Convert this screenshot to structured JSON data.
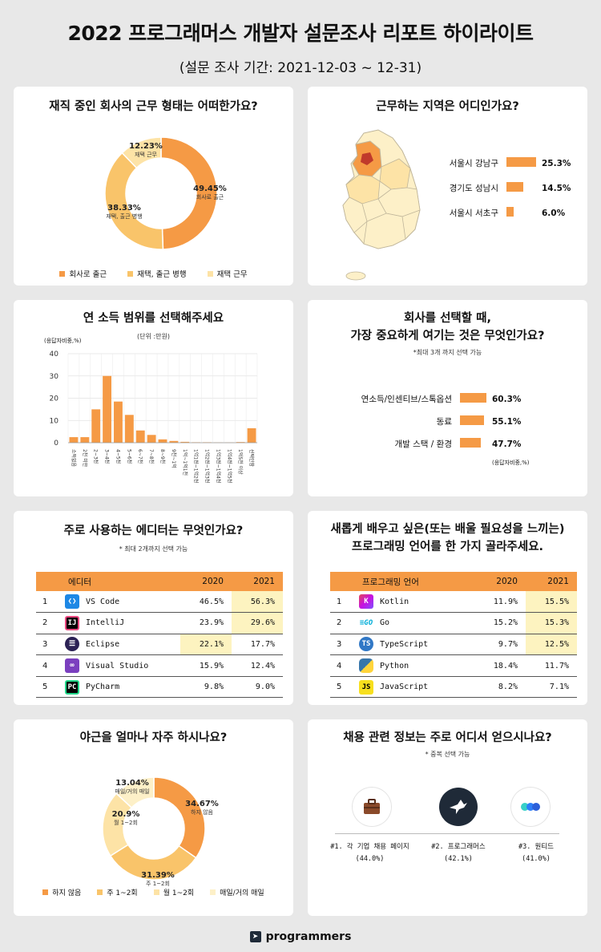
{
  "header": {
    "title": "2022 프로그래머스 개발자 설문조사 리포트 하이라이트",
    "subtitle": "(설문 조사 기간: 2021-12-03 ~ 12-31)"
  },
  "colors": {
    "orange": "#f59a45",
    "mid": "#f9c46a",
    "light": "#fde3a6",
    "lighter": "#fdf0c8",
    "highlight": "#fdf3c0"
  },
  "work_type": {
    "title": "재직 중인 회사의 근무 형태는 어떠한가요?",
    "slices": [
      {
        "pct_label": "49.45%",
        "sub": "회사로 출근",
        "value": 49.45,
        "color": "#f59a45"
      },
      {
        "pct_label": "38.33%",
        "sub": "재택, 출근 병행",
        "value": 38.33,
        "color": "#f9c46a"
      },
      {
        "pct_label": "12.23%",
        "sub": "재택 근무",
        "value": 12.23,
        "color": "#fde3a6"
      }
    ],
    "legend": [
      "회사로 출근",
      "재택, 출근 병행",
      "재택 근무"
    ]
  },
  "region": {
    "title": "근무하는 지역은 어디인가요?",
    "bars": [
      {
        "label": "서울시 강남구",
        "value": 25.3,
        "value_label": "25.3%"
      },
      {
        "label": "경기도 성남시",
        "value": 14.5,
        "value_label": "14.5%"
      },
      {
        "label": "서울시 서초구",
        "value": 6.0,
        "value_label": "6.0%"
      }
    ]
  },
  "income": {
    "title": "연 소득 범위를 선택해주세요",
    "note": "(단위 :만원)",
    "ylabel": "(응답자비중,%)"
  },
  "company": {
    "title_line1": "회사를 선택할 때,",
    "title_line2": "가장 중요하게 여기는 것은 무엇인가요?",
    "note": "*최대 3개 까지 선택 가능",
    "bars": [
      {
        "label": "연소득/인센티브/스톡옵션",
        "value": 60.3,
        "value_label": "60.3%"
      },
      {
        "label": "동료",
        "value": 55.1,
        "value_label": "55.1%"
      },
      {
        "label": "개발 스택 / 환경",
        "value": 47.7,
        "value_label": "47.7%"
      }
    ],
    "footnote": "(응답자비중,%)"
  },
  "editor": {
    "title": "주로 사용하는 에디터는 무엇인가요?",
    "note": "* 최대 2개까지 선택 가능",
    "headers": [
      "에디터",
      "2020",
      "2021"
    ],
    "rows": [
      {
        "rank": "1",
        "name": "VS Code",
        "icon": "vscode-icon",
        "y2020": "46.5%",
        "y2021": "56.3%"
      },
      {
        "rank": "2",
        "name": "IntelliJ",
        "icon": "intellij-icon",
        "y2020": "23.9%",
        "y2021": "29.6%"
      },
      {
        "rank": "3",
        "name": "Eclipse",
        "icon": "eclipse-icon",
        "y2020": "22.1%",
        "y2021": "17.7%"
      },
      {
        "rank": "4",
        "name": "Visual Studio",
        "icon": "visual-studio-icon",
        "y2020": "15.9%",
        "y2021": "12.4%"
      },
      {
        "rank": "5",
        "name": "PyCharm",
        "icon": "pycharm-icon",
        "y2020": "9.8%",
        "y2021": "9.0%"
      }
    ]
  },
  "language": {
    "title_line1": "새롭게 배우고 싶은(또는 배울 필요성을 느끼는)",
    "title_line2": "프로그래밍 언어를 한 가지 골라주세요.",
    "headers": [
      "프로그래밍 언어",
      "2020",
      "2021"
    ],
    "rows": [
      {
        "rank": "1",
        "name": "Kotlin",
        "icon": "kotlin-icon",
        "y2020": "11.9%",
        "y2021": "15.5%"
      },
      {
        "rank": "2",
        "name": "Go",
        "icon": "go-icon",
        "y2020": "15.2%",
        "y2021": "15.3%"
      },
      {
        "rank": "3",
        "name": "TypeScript",
        "icon": "typescript-icon",
        "y2020": "9.7%",
        "y2021": "12.5%"
      },
      {
        "rank": "4",
        "name": "Python",
        "icon": "python-icon",
        "y2020": "18.4%",
        "y2021": "11.7%"
      },
      {
        "rank": "5",
        "name": "JavaScript",
        "icon": "javascript-icon",
        "y2020": "8.2%",
        "y2021": "7.1%"
      }
    ]
  },
  "overtime": {
    "title": "야근을 얼마나 자주 하시나요?",
    "slices": [
      {
        "pct_label": "34.67%",
        "sub": "하지 않음",
        "value": 34.67,
        "color": "#f59a45"
      },
      {
        "pct_label": "31.39%",
        "sub": "주 1~2회",
        "value": 31.39,
        "color": "#f9c46a"
      },
      {
        "pct_label": "20.9%",
        "sub": "월 1~2회",
        "value": 20.9,
        "color": "#fde3a6"
      },
      {
        "pct_label": "13.04%",
        "sub": "매일/거의 매일",
        "value": 13.04,
        "color": "#fdf0c8"
      }
    ],
    "legend": [
      "하지 않음",
      "주 1~2회",
      "월 1~2회",
      "매일/거의 매일"
    ]
  },
  "jobinfo": {
    "title": "채용 관련 정보는 주로 어디서 얻으시나요?",
    "note": "* 중복 선택 가능",
    "items": [
      {
        "label": "#1. 각 기업 채용 페이지",
        "value": "(44.0%)",
        "icon": "briefcase-icon"
      },
      {
        "label": "#2. 프로그래머스",
        "value": "(42.1%)",
        "icon": "programmers-bird-icon"
      },
      {
        "label": "#3. 원티드",
        "value": "(41.0%)",
        "icon": "wanted-icon"
      }
    ]
  },
  "footer": {
    "brand": "programmers"
  },
  "chart_data": [
    {
      "type": "pie",
      "title": "재직 중인 회사의 근무 형태는 어떠한가요?",
      "categories": [
        "회사로 출근",
        "재택, 출근 병행",
        "재택 근무"
      ],
      "values": [
        49.45,
        38.33,
        12.23
      ]
    },
    {
      "type": "bar",
      "title": "근무하는 지역은 어디인가요?",
      "categories": [
        "서울시 강남구",
        "경기도 성남시",
        "서울시 서초구"
      ],
      "values": [
        25.3,
        14.5,
        6.0
      ]
    },
    {
      "type": "bar",
      "title": "연 소득 범위를 선택해주세요",
      "ylabel": "(응답자비중,%)",
      "ylim": [
        0,
        40
      ],
      "yticks": [
        0,
        10,
        20,
        30,
        40
      ],
      "grid": true,
      "categories": [
        "소득없음",
        "2천 미만",
        "2~3천",
        "3~4천",
        "4~5천",
        "5~6천",
        "6~7천",
        "7~8천",
        "8~9천",
        "9천~1억",
        "1억~1억1천",
        "1억1천~1억2천",
        "1억2천~1억3천",
        "1억3천~1억4천",
        "1억4천~1억5천",
        "1억5천 이상",
        "선택안함"
      ],
      "values": [
        2.5,
        2.5,
        15,
        30,
        18.5,
        12.5,
        5.5,
        3.5,
        1.5,
        0.8,
        0.4,
        0.2,
        0.2,
        0.1,
        0.1,
        0.3,
        6.5
      ]
    },
    {
      "type": "bar",
      "title": "회사를 선택할 때, 가장 중요하게 여기는 것은 무엇인가요?",
      "categories": [
        "연소득/인센티브/스톡옵션",
        "동료",
        "개발 스택 / 환경"
      ],
      "values": [
        60.3,
        55.1,
        47.7
      ]
    },
    {
      "type": "table",
      "title": "주로 사용하는 에디터는 무엇인가요?",
      "categories": [
        "VS Code",
        "IntelliJ",
        "Eclipse",
        "Visual Studio",
        "PyCharm"
      ],
      "series": [
        {
          "name": "2020",
          "values": [
            46.5,
            23.9,
            22.1,
            15.9,
            9.8
          ]
        },
        {
          "name": "2021",
          "values": [
            56.3,
            29.6,
            17.7,
            12.4,
            9.0
          ]
        }
      ]
    },
    {
      "type": "table",
      "title": "새롭게 배우고 싶은(또는 배울 필요성을 느끼는) 프로그래밍 언어를 한 가지 골라주세요.",
      "categories": [
        "Kotlin",
        "Go",
        "TypeScript",
        "Python",
        "JavaScript"
      ],
      "series": [
        {
          "name": "2020",
          "values": [
            11.9,
            15.2,
            9.7,
            18.4,
            8.2
          ]
        },
        {
          "name": "2021",
          "values": [
            15.5,
            15.3,
            12.5,
            11.7,
            7.1
          ]
        }
      ]
    },
    {
      "type": "pie",
      "title": "야근을 얼마나 자주 하시나요?",
      "categories": [
        "하지 않음",
        "주 1~2회",
        "월 1~2회",
        "매일/거의 매일"
      ],
      "values": [
        34.67,
        31.39,
        20.9,
        13.04
      ]
    },
    {
      "type": "bar",
      "title": "채용 관련 정보는 주로 어디서 얻으시나요?",
      "categories": [
        "각 기업 채용 페이지",
        "프로그래머스",
        "원티드"
      ],
      "values": [
        44.0,
        42.1,
        41.0
      ]
    }
  ]
}
